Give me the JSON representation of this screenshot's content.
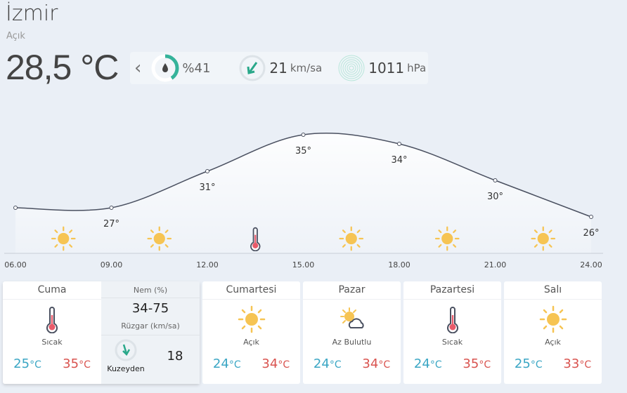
{
  "city": "İzmir",
  "condition": "Açık",
  "current_temp": "28,5 °C",
  "stats": {
    "humidity": "%41",
    "humidity_value": 41,
    "wind_speed": "21",
    "wind_unit": "km/sa",
    "pressure": "1011",
    "pressure_unit": "hPa"
  },
  "chart_data": {
    "type": "line",
    "x": [
      "06.00",
      "09.00",
      "12.00",
      "15.00",
      "18.00",
      "21.00",
      "24.00"
    ],
    "values": [
      27,
      27,
      31,
      35,
      34,
      30,
      26
    ],
    "labels": [
      "",
      "27°",
      "31°",
      "35°",
      "34°",
      "30°",
      "26°"
    ],
    "icons": [
      "sun-icon",
      "sun-icon",
      "thermometer-icon",
      "sun-icon",
      "sun-icon",
      "sun-icon"
    ]
  },
  "today": {
    "day": "Cuma",
    "icon": "thermometer-icon",
    "desc": "Sıcak",
    "low": "25",
    "high": "35",
    "unit": "°C",
    "humidity_label": "Nem (%)",
    "humidity": "34-75",
    "wind_label": "Rüzgar (km/sa)",
    "wind_dir": "Kuzeyden",
    "wind": "18"
  },
  "days": [
    {
      "day": "Cumartesi",
      "icon": "sun-icon",
      "desc": "Açık",
      "low": "24",
      "high": "34"
    },
    {
      "day": "Pazar",
      "icon": "partly-cloudy-icon",
      "desc": "Az Bulutlu",
      "low": "24",
      "high": "34"
    },
    {
      "day": "Pazartesi",
      "icon": "thermometer-icon",
      "desc": "Sıcak",
      "low": "24",
      "high": "35"
    },
    {
      "day": "Salı",
      "icon": "sun-icon",
      "desc": "Açık",
      "low": "25",
      "high": "33"
    }
  ],
  "unit": "°C"
}
